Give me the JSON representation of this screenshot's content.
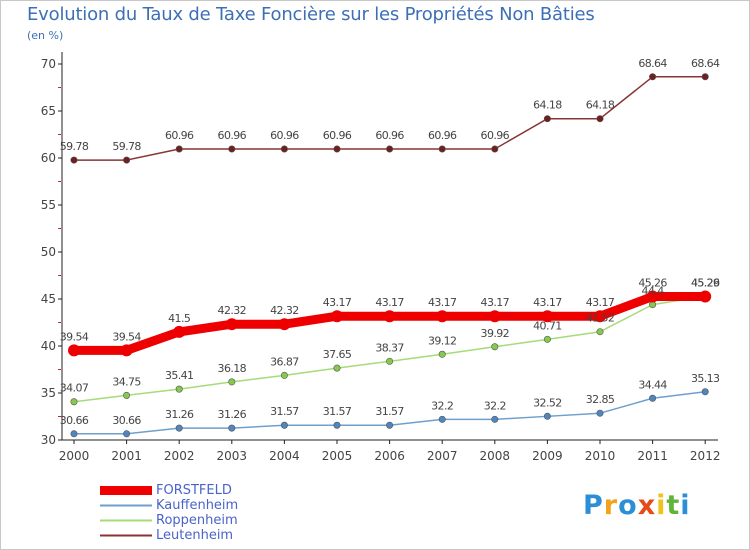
{
  "header": {
    "title": "Evolution du Taux de Taxe Foncière sur les Propriétés Non Bâties",
    "subtitle": "(en %)"
  },
  "brand": {
    "parts": [
      "P",
      "r",
      "o",
      "x",
      "i",
      "t",
      "i"
    ],
    "colors": [
      "#2c8fd6",
      "#f2a21b",
      "#2c8fd6",
      "#e64a19",
      "#f2c218",
      "#5fb53a",
      "#2c8fd6"
    ]
  },
  "colors": {
    "axis": "#222222",
    "grid_tick": "#d82020",
    "value_label": "#444444",
    "background": "#ffffff"
  },
  "chart_data": {
    "type": "line",
    "title": "Evolution du Taux de Taxe Foncière sur les Propriétés Non Bâties",
    "ylabel": "(en %)",
    "xlabel": "",
    "ylim": [
      30,
      70
    ],
    "yticks": [
      30,
      35,
      40,
      45,
      50,
      55,
      60,
      65,
      70
    ],
    "x": [
      "2000",
      "2001",
      "2002",
      "2003",
      "2004",
      "2005",
      "2006",
      "2007",
      "2008",
      "2009",
      "2010",
      "2011",
      "2012"
    ],
    "series": [
      {
        "name": "FORSTFELD",
        "color": "#ee0000",
        "marker": "#ee0000",
        "thick": true,
        "values": [
          39.54,
          39.54,
          41.5,
          42.32,
          42.32,
          43.17,
          43.17,
          43.17,
          43.17,
          43.17,
          43.17,
          45.26,
          45.26
        ],
        "labels": [
          "39.54",
          "39.54",
          "41.5",
          "42.32",
          "42.32",
          "43.17",
          "43.17",
          "43.17",
          "43.17",
          "43.17",
          "43.17",
          "45.26",
          "45.26"
        ]
      },
      {
        "name": "Kauffenheim",
        "color": "#6f9fcc",
        "marker": "#4f86c0",
        "thick": false,
        "values": [
          30.66,
          30.66,
          31.26,
          31.26,
          31.57,
          31.57,
          31.57,
          32.2,
          32.2,
          32.52,
          32.85,
          34.44,
          35.13
        ],
        "labels": [
          "30.66",
          "30.66",
          "31.26",
          "31.26",
          "31.57",
          "31.57",
          "31.57",
          "32.2",
          "32.2",
          "32.52",
          "32.85",
          "34.44",
          "35.13"
        ]
      },
      {
        "name": "Roppenheim",
        "color": "#a5db7a",
        "marker": "#86c94f",
        "thick": false,
        "values": [
          34.07,
          34.75,
          35.41,
          36.18,
          36.87,
          37.65,
          38.37,
          39.12,
          39.92,
          40.71,
          41.52,
          44.4,
          45.29
        ],
        "labels": [
          "34.07",
          "34.75",
          "35.41",
          "36.18",
          "36.87",
          "37.65",
          "38.37",
          "39.12",
          "39.92",
          "40.71",
          "41.52",
          "44.4",
          "45.29"
        ]
      },
      {
        "name": "Leutenheim",
        "color": "#8a3434",
        "marker": "#6e1f1f",
        "thick": false,
        "values": [
          59.78,
          59.78,
          60.96,
          60.96,
          60.96,
          60.96,
          60.96,
          60.96,
          60.96,
          64.18,
          64.18,
          68.64,
          68.64
        ],
        "labels": [
          "59.78",
          "59.78",
          "60.96",
          "60.96",
          "60.96",
          "60.96",
          "60.96",
          "60.96",
          "60.96",
          "64.18",
          "64.18",
          "68.64",
          "68.64"
        ]
      }
    ]
  }
}
